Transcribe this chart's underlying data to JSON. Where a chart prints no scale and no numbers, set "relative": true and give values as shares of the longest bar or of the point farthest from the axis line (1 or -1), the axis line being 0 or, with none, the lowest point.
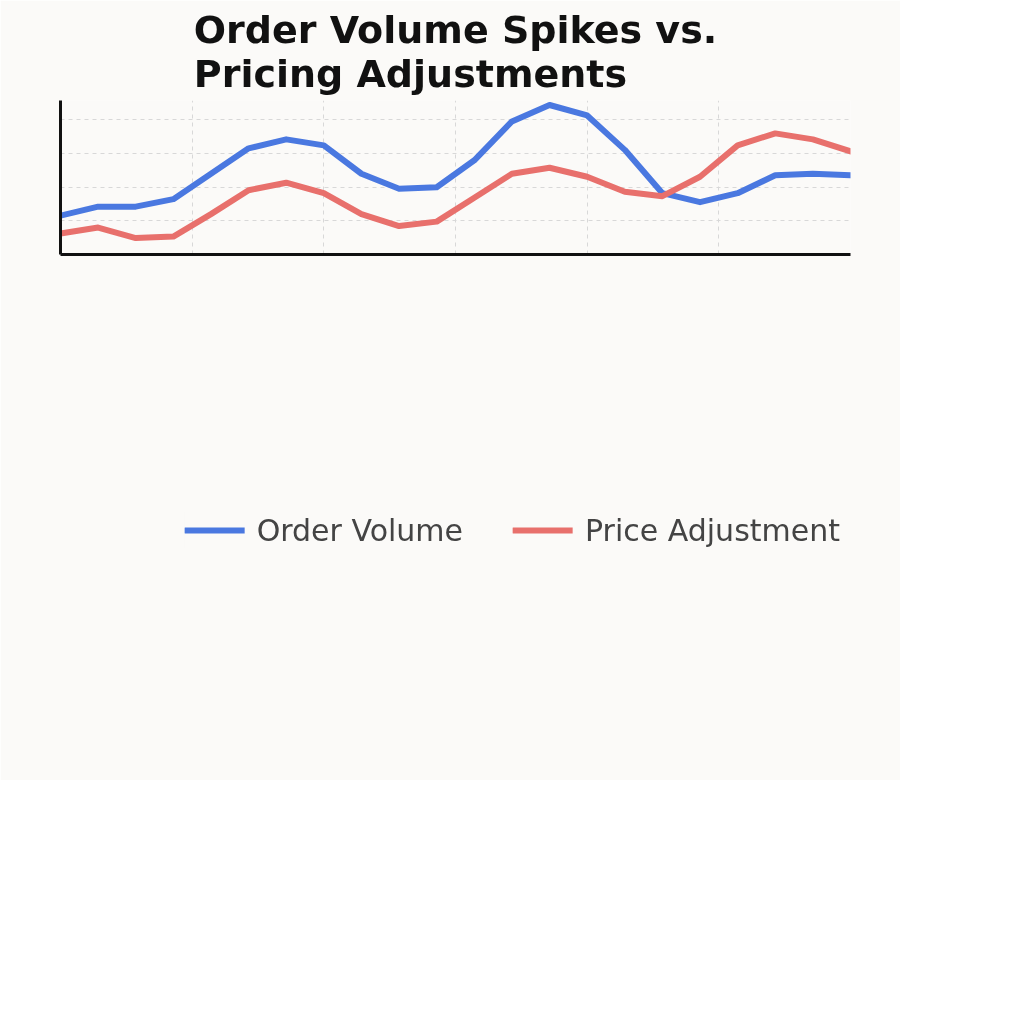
{
  "chart_data": {
    "type": "line",
    "title": "Order Volume Spikes vs. Pricing Adjustments",
    "relative": true,
    "categories": [
      null,
      null,
      null,
      null,
      null,
      null,
      null,
      null,
      null,
      null,
      null,
      null,
      null,
      null,
      null,
      null,
      null,
      null,
      null,
      null,
      null,
      null
    ],
    "series": [
      {
        "name": "Order Volume",
        "color": "#4a78e0",
        "values": [
          0.26,
          0.32,
          0.32,
          0.37,
          0.54,
          0.71,
          0.77,
          0.73,
          0.54,
          0.44,
          0.45,
          0.63,
          0.89,
          1.0,
          0.93,
          0.7,
          0.41,
          0.35,
          0.41,
          0.53,
          0.54,
          0.53
        ]
      },
      {
        "name": "Price Adjustment",
        "color": "#e8706c",
        "values": [
          0.14,
          0.18,
          0.11,
          0.12,
          0.27,
          0.43,
          0.48,
          0.41,
          0.27,
          0.19,
          0.22,
          0.38,
          0.54,
          0.58,
          0.52,
          0.42,
          0.39,
          0.52,
          0.73,
          0.81,
          0.77,
          0.69
        ]
      }
    ],
    "grid": true,
    "legend": "bottom",
    "line_style": "solid",
    "marker": "none"
  }
}
